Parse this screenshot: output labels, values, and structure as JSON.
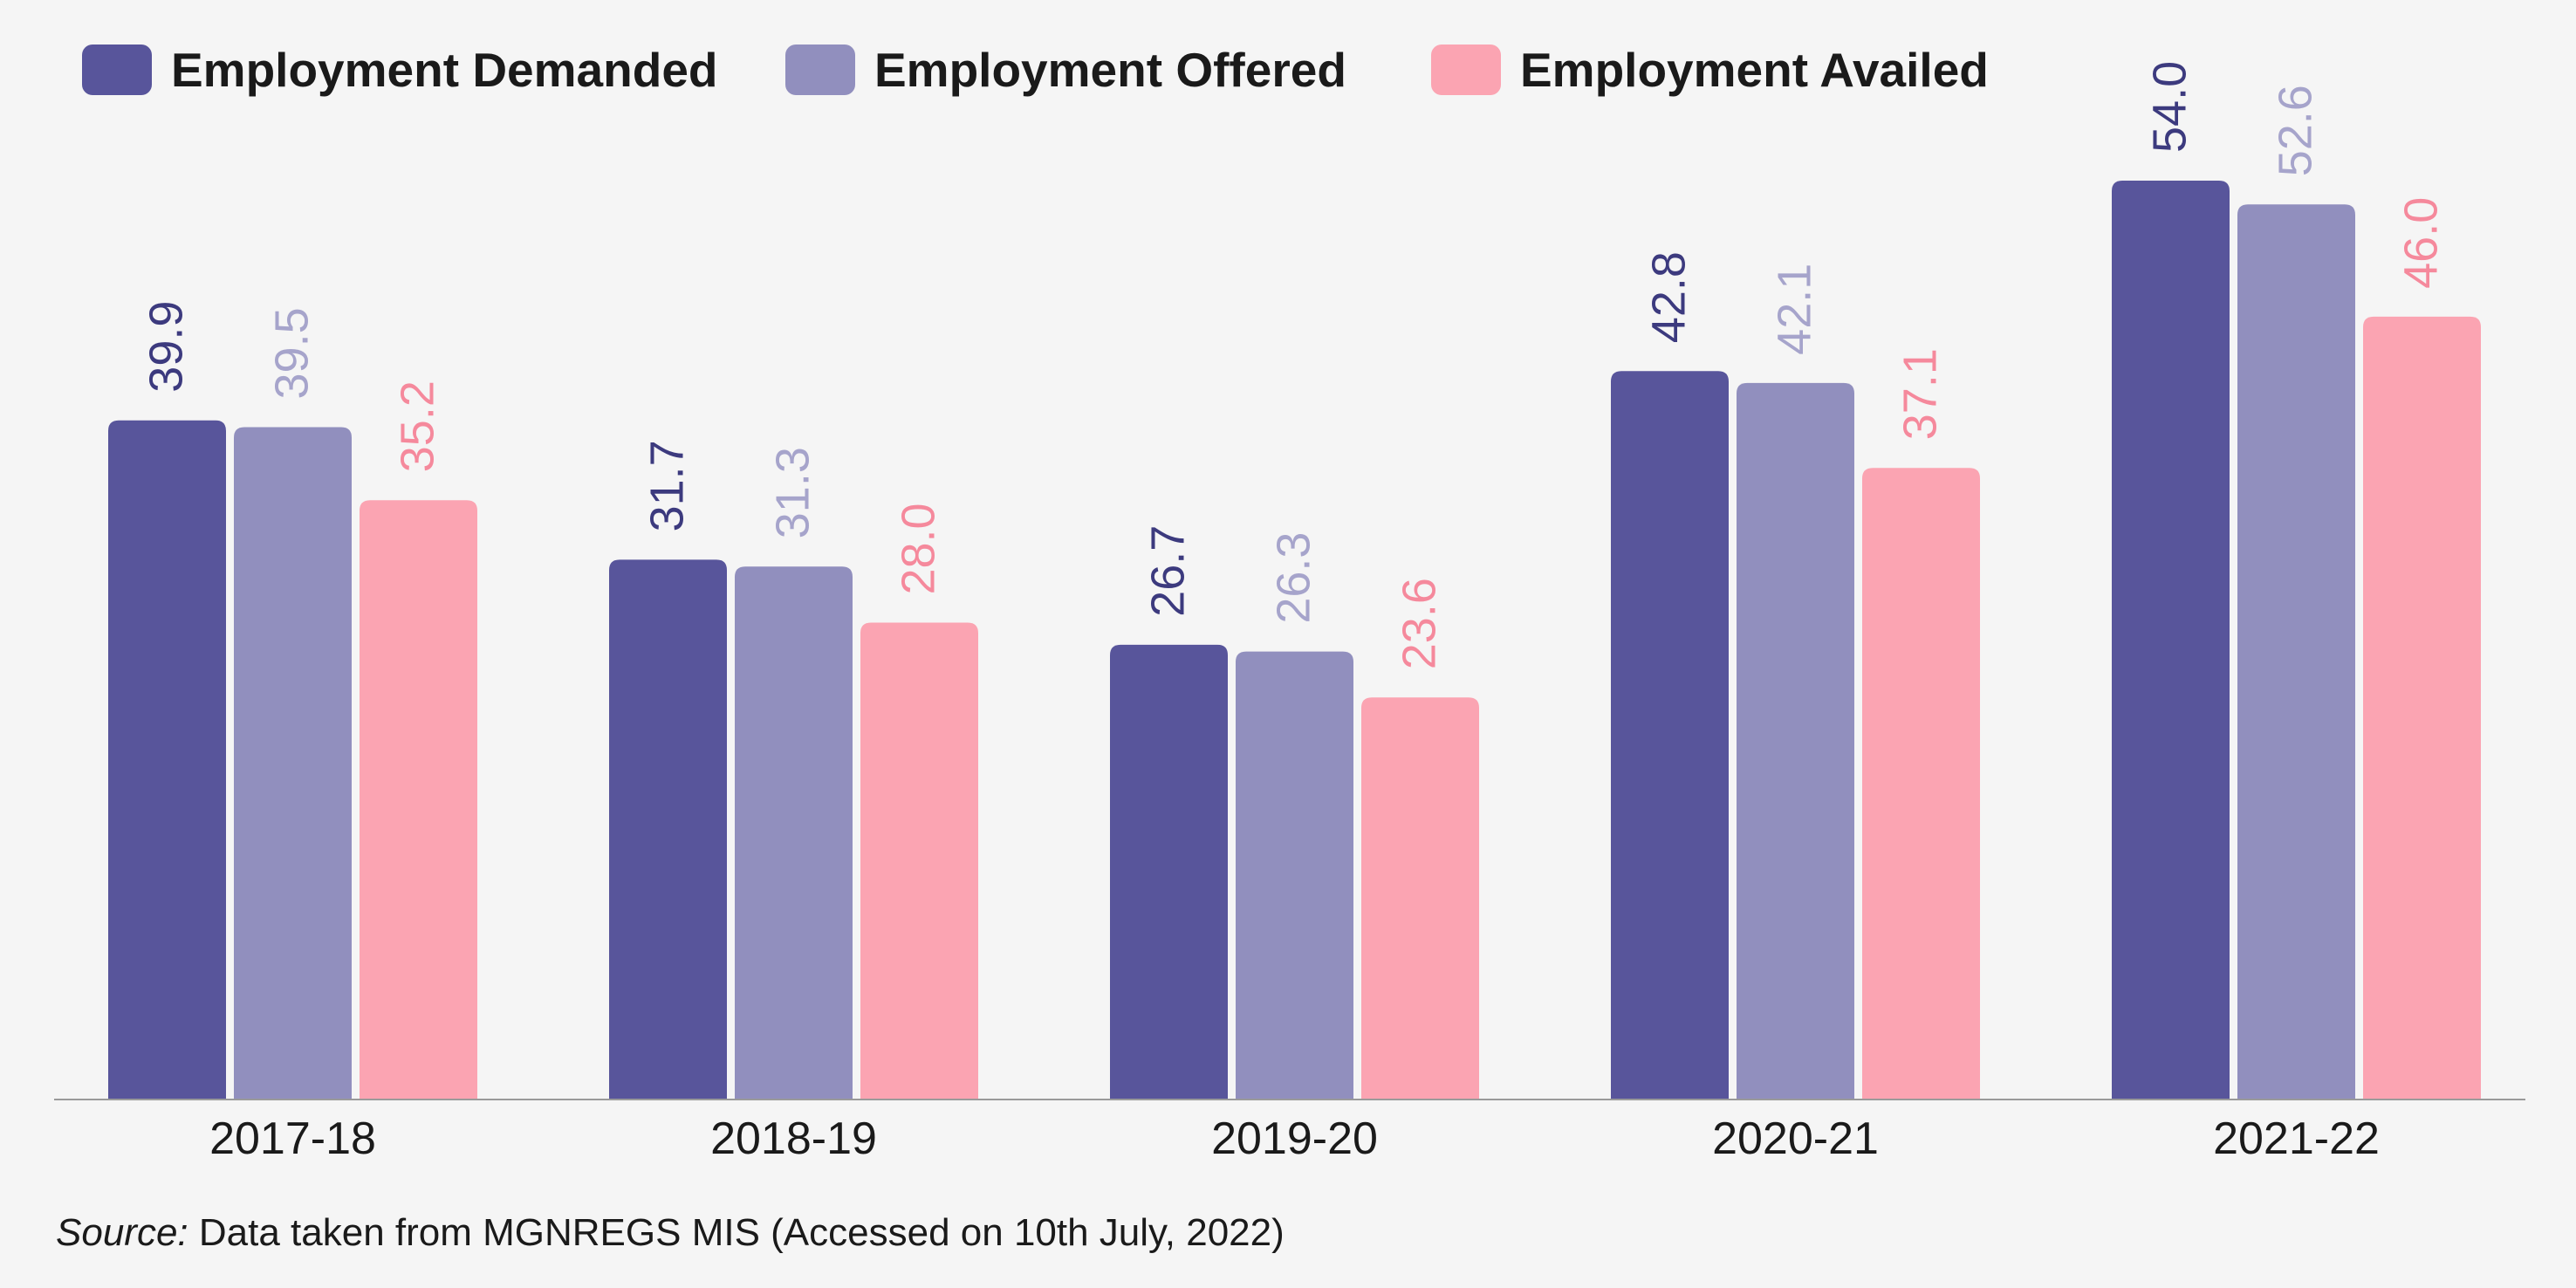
{
  "chart_data": {
    "type": "bar",
    "categories": [
      "2017-18",
      "2018-19",
      "2019-20",
      "2020-21",
      "2021-22"
    ],
    "series": [
      {
        "name": "Employment Demanded",
        "values": [
          39.9,
          31.7,
          26.7,
          42.8,
          54.0
        ],
        "labels": [
          "39.9",
          "31.7",
          "26.7",
          "42.8",
          "54.0"
        ],
        "color": "#58559b"
      },
      {
        "name": "Employment Offered",
        "values": [
          39.5,
          31.3,
          26.3,
          42.1,
          52.6
        ],
        "labels": [
          "39.5",
          "31.3",
          "26.3",
          "42.1",
          "52.6"
        ],
        "color": "#918fbe"
      },
      {
        "name": "Employment Availed",
        "values": [
          35.2,
          28.0,
          23.6,
          37.1,
          46.0
        ],
        "labels": [
          "35.2",
          "28.0",
          "23.6",
          "37.1",
          "46.0"
        ],
        "color": "#fba4b2"
      }
    ],
    "label_colors": [
      "#3c3a7e",
      "#a6a4cb",
      "#f5899c"
    ],
    "legend_position": "top",
    "grid": false
  },
  "source": {
    "prefix": "Source:",
    "text": " Data taken from MGNREGS MIS (Accessed on 10th July, 2022)"
  }
}
